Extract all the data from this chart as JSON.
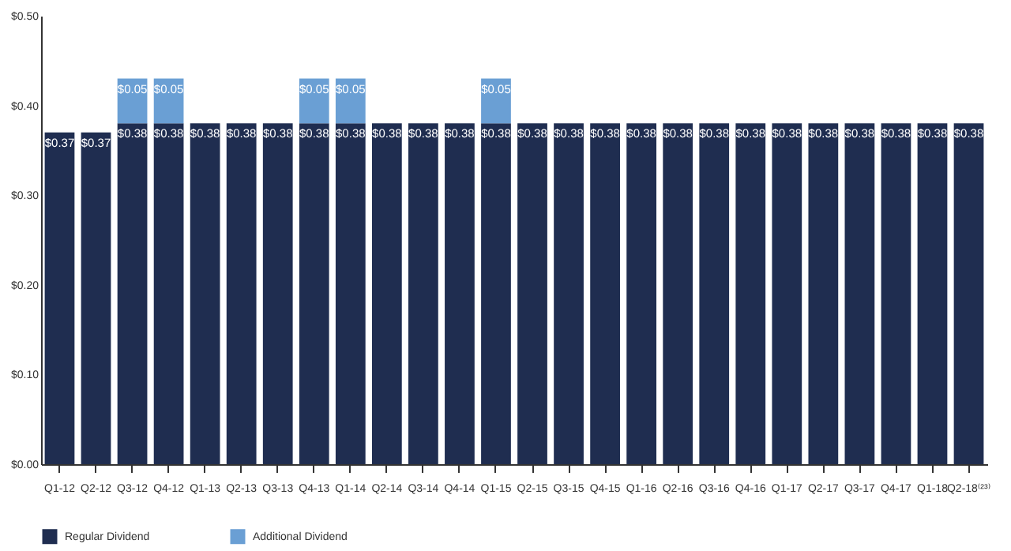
{
  "chart_data": {
    "type": "bar",
    "stacked": true,
    "categories": [
      "Q1-12",
      "Q2-12",
      "Q3-12",
      "Q4-12",
      "Q1-13",
      "Q2-13",
      "Q3-13",
      "Q4-13",
      "Q1-14",
      "Q2-14",
      "Q3-14",
      "Q4-14",
      "Q1-15",
      "Q2-15",
      "Q3-15",
      "Q4-15",
      "Q1-16",
      "Q2-16",
      "Q3-16",
      "Q4-16",
      "Q1-17",
      "Q2-17",
      "Q3-17",
      "Q4-17",
      "Q1-18",
      "Q2-18⁽²³⁾"
    ],
    "series": [
      {
        "name": "Regular Dividend",
        "color": "#1f2d50",
        "values": [
          0.37,
          0.37,
          0.38,
          0.38,
          0.38,
          0.38,
          0.38,
          0.38,
          0.38,
          0.38,
          0.38,
          0.38,
          0.38,
          0.38,
          0.38,
          0.38,
          0.38,
          0.38,
          0.38,
          0.38,
          0.38,
          0.38,
          0.38,
          0.38,
          0.38,
          0.38
        ],
        "value_labels": [
          "$0.37",
          "$0.37",
          "$0.38",
          "$0.38",
          "$0.38",
          "$0.38",
          "$0.38",
          "$0.38",
          "$0.38",
          "$0.38",
          "$0.38",
          "$0.38",
          "$0.38",
          "$0.38",
          "$0.38",
          "$0.38",
          "$0.38",
          "$0.38",
          "$0.38",
          "$0.38",
          "$0.38",
          "$0.38",
          "$0.38",
          "$0.38",
          "$0.38",
          "$0.38"
        ]
      },
      {
        "name": "Additional Dividend",
        "color": "#6a9fd4",
        "values": [
          null,
          null,
          0.05,
          0.05,
          null,
          null,
          null,
          0.05,
          0.05,
          null,
          null,
          null,
          0.05,
          null,
          null,
          null,
          null,
          null,
          null,
          null,
          null,
          null,
          null,
          null,
          null,
          null
        ],
        "value_labels": [
          null,
          null,
          "$0.05",
          "$0.05",
          null,
          null,
          null,
          "$0.05",
          "$0.05",
          null,
          null,
          null,
          "$0.05",
          null,
          null,
          null,
          null,
          null,
          null,
          null,
          null,
          null,
          null,
          null,
          null,
          null
        ]
      }
    ],
    "ylim": [
      0,
      0.5
    ],
    "yticks": [
      {
        "value": 0,
        "label": "$0.00"
      },
      {
        "value": 0.1,
        "label": "$0.10"
      },
      {
        "value": 0.2,
        "label": "$0.20"
      },
      {
        "value": 0.3,
        "label": "$0.30"
      },
      {
        "value": 0.4,
        "label": "$0.40"
      },
      {
        "value": 0.5,
        "label": "$0.50"
      }
    ],
    "grid": false,
    "legend": "bottom"
  }
}
